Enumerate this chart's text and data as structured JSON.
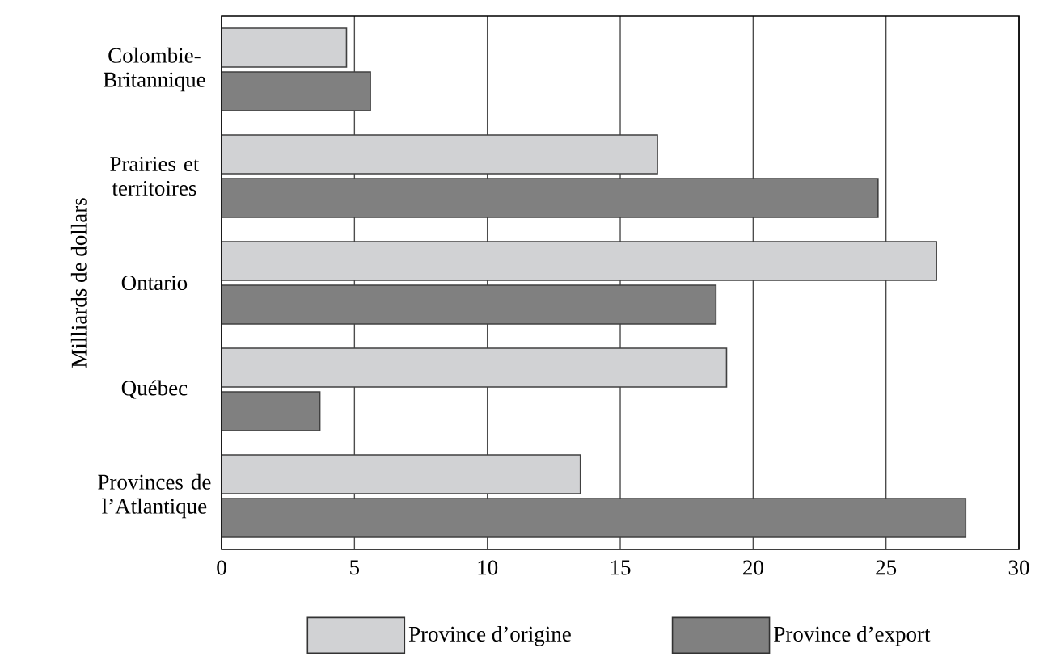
{
  "chart_data": {
    "type": "bar",
    "orientation": "horizontal",
    "ylabel": "Milliards de dollars",
    "categories": [
      "Colombie-Britannique",
      "Prairies et territoires",
      "Ontario",
      "Québec",
      "Provinces de l’Atlantique"
    ],
    "series": [
      {
        "name": "Province d’origine",
        "color": "#d1d2d4",
        "values": [
          4.7,
          16.4,
          26.9,
          19.0,
          13.5
        ]
      },
      {
        "name": "Province d’export",
        "color": "#808080",
        "values": [
          5.6,
          24.7,
          18.6,
          3.7,
          28.0
        ]
      }
    ],
    "xlim": [
      0,
      30
    ],
    "xticks": [
      0,
      5,
      10,
      15,
      20,
      25,
      30
    ],
    "grid": "x",
    "legend": "bottom"
  }
}
